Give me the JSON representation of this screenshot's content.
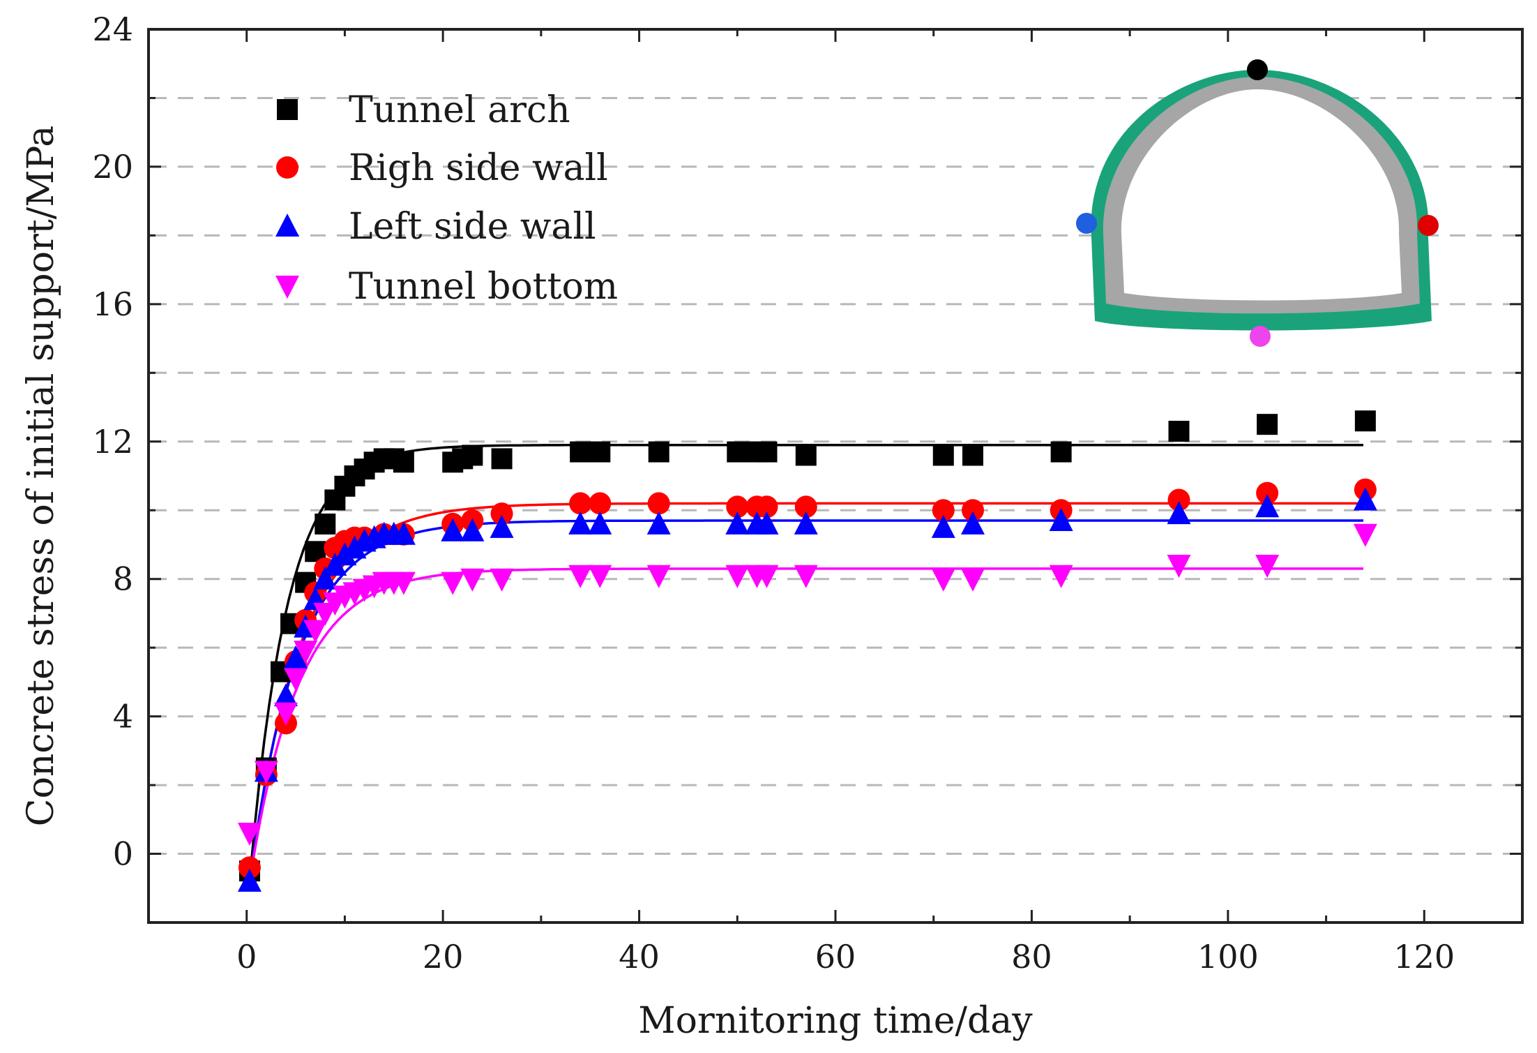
{
  "chart_data": {
    "type": "scatter",
    "title": "",
    "xlabel": "Mornitoring time/day",
    "ylabel": "Concrete stress of initial support/MPa",
    "xlim": [
      -10,
      130
    ],
    "ylim": [
      -2,
      24
    ],
    "xticks": [
      0,
      20,
      40,
      60,
      80,
      100,
      120
    ],
    "yticks": [
      0,
      4,
      8,
      12,
      16,
      20,
      24
    ],
    "grid": "horizontal dashed",
    "legend_position": "top-left",
    "series": [
      {
        "name": "Tunnel arch",
        "color": "#000000",
        "marker": "square",
        "x": [
          0.3,
          2,
          3.5,
          4.5,
          6,
          7,
          8,
          9,
          10,
          11,
          12,
          13,
          14,
          15,
          16,
          21,
          22,
          23,
          26,
          34,
          36,
          42,
          50,
          52,
          53,
          57,
          71,
          74,
          83,
          95,
          104,
          114
        ],
        "y": [
          -0.5,
          2.5,
          5.3,
          6.7,
          7.9,
          8.8,
          9.6,
          10.3,
          10.7,
          11.0,
          11.2,
          11.4,
          11.5,
          11.5,
          11.4,
          11.4,
          11.5,
          11.6,
          11.5,
          11.7,
          11.7,
          11.7,
          11.7,
          11.7,
          11.7,
          11.6,
          11.6,
          11.6,
          11.7,
          12.3,
          12.5,
          12.6
        ],
        "fit": {
          "plateau": 11.9,
          "rate": 0.26
        }
      },
      {
        "name": "Righ side wall",
        "color": "#ff0000",
        "marker": "circle",
        "x": [
          0.3,
          2,
          4,
          5,
          6,
          7,
          8,
          9,
          10,
          11,
          12,
          14,
          16,
          21,
          23,
          26,
          34,
          36,
          42,
          50,
          52,
          53,
          57,
          71,
          74,
          83,
          95,
          104,
          114
        ],
        "y": [
          -0.4,
          2.3,
          3.8,
          5.6,
          6.8,
          7.6,
          8.3,
          8.9,
          9.1,
          9.2,
          9.2,
          9.3,
          9.3,
          9.6,
          9.7,
          9.9,
          10.2,
          10.2,
          10.2,
          10.1,
          10.1,
          10.1,
          10.1,
          10.0,
          10.0,
          10.0,
          10.3,
          10.5,
          10.6
        ],
        "fit": {
          "plateau": 10.2,
          "rate": 0.19
        }
      },
      {
        "name": "Left side wall",
        "color": "#0000ff",
        "marker": "triangle-up",
        "x": [
          0.3,
          2,
          4,
          5,
          6,
          7,
          8,
          9,
          10,
          11,
          12,
          13,
          14,
          15,
          16,
          21,
          23,
          26,
          34,
          36,
          42,
          50,
          52,
          53,
          57,
          71,
          74,
          83,
          95,
          104,
          114
        ],
        "y": [
          -0.8,
          2.4,
          4.6,
          5.7,
          6.6,
          7.4,
          8.0,
          8.4,
          8.7,
          8.9,
          9.1,
          9.2,
          9.3,
          9.3,
          9.3,
          9.4,
          9.4,
          9.5,
          9.6,
          9.6,
          9.6,
          9.6,
          9.6,
          9.6,
          9.6,
          9.5,
          9.6,
          9.7,
          9.9,
          10.1,
          10.3
        ],
        "fit": {
          "plateau": 9.7,
          "rate": 0.2
        }
      },
      {
        "name": "Tunnel bottom",
        "color": "#ff00ff",
        "marker": "triangle-down",
        "x": [
          0.3,
          2,
          4,
          5,
          6,
          7,
          8,
          9,
          10,
          11,
          12,
          13,
          14,
          15,
          16,
          21,
          23,
          26,
          34,
          36,
          42,
          50,
          52,
          53,
          57,
          71,
          74,
          83,
          95,
          104,
          114
        ],
        "y": [
          0.6,
          2.4,
          4.1,
          5.1,
          5.9,
          6.5,
          7.0,
          7.3,
          7.5,
          7.6,
          7.7,
          7.8,
          7.9,
          7.9,
          7.9,
          7.9,
          8.0,
          8.0,
          8.1,
          8.1,
          8.1,
          8.1,
          8.1,
          8.1,
          8.1,
          8.0,
          8.0,
          8.1,
          8.4,
          8.4,
          9.3
        ],
        "fit": {
          "plateau": 8.3,
          "rate": 0.2
        }
      }
    ],
    "fit_start": -0.8,
    "fit_x_range": [
      0.3,
      114
    ],
    "inset": {
      "description_free": true,
      "lining_color": "#1aa37a",
      "support_color": "#a6a6a6",
      "points": [
        {
          "series": "Tunnel arch",
          "color": "#000000"
        },
        {
          "series": "Righ side wall",
          "color": "#e00000"
        },
        {
          "series": "Left side wall",
          "color": "#1f5fe0"
        },
        {
          "series": "Tunnel bottom",
          "color": "#ee44ee"
        }
      ]
    }
  }
}
